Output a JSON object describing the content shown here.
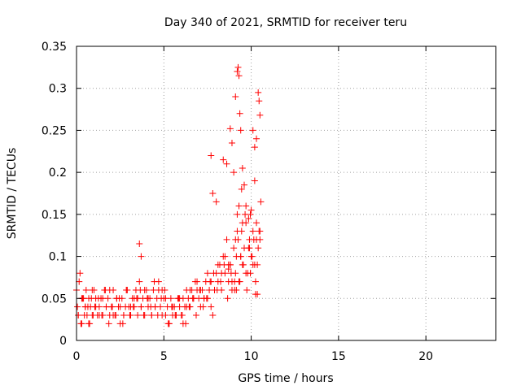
{
  "chart_data": {
    "type": "scatter",
    "title": "Day 340 of 2021, SRMTID for receiver teru",
    "xlabel": "GPS time / hours",
    "ylabel": "SRMTID / TECUs",
    "xlim": [
      0,
      24
    ],
    "ylim": [
      0,
      0.35
    ],
    "xticks": [
      0,
      5,
      10,
      15,
      20
    ],
    "xtick_labels": [
      "0",
      "5",
      "10",
      "15",
      "20"
    ],
    "yticks": [
      0,
      0.05,
      0.1,
      0.15,
      0.2,
      0.25,
      0.3,
      0.35
    ],
    "ytick_labels": [
      "0",
      "0.05",
      "0.1",
      "0.15",
      "0.2",
      "0.25",
      "0.3",
      "0.35"
    ],
    "grid": true,
    "marker": "+",
    "series": [
      {
        "name": "SRMTID",
        "color": "#ff0000",
        "x": [
          0.0,
          0.1,
          0.2,
          0.3,
          0.4,
          0.5,
          0.6,
          0.7,
          0.8,
          0.9,
          1.0,
          1.1,
          1.2,
          1.3,
          1.4,
          1.5,
          1.6,
          1.7,
          1.8,
          1.9,
          2.0,
          2.1,
          2.2,
          2.3,
          2.4,
          2.5,
          2.6,
          2.7,
          2.8,
          2.9,
          3.0,
          3.1,
          3.2,
          3.3,
          3.4,
          3.5,
          3.6,
          3.7,
          3.8,
          3.9,
          4.0,
          4.1,
          4.2,
          4.3,
          4.4,
          4.5,
          4.6,
          4.7,
          4.8,
          4.9,
          5.0,
          5.1,
          5.2,
          5.3,
          5.4,
          5.5,
          5.6,
          5.7,
          5.8,
          5.9,
          6.0,
          6.1,
          6.2,
          6.3,
          6.4,
          6.5,
          6.6,
          6.7,
          6.8,
          6.9,
          7.0,
          7.1,
          7.2,
          7.3,
          7.4,
          7.5,
          7.6,
          7.7,
          7.8,
          7.9,
          8.0,
          8.1,
          8.2,
          8.3,
          8.4,
          8.5,
          8.6,
          8.7,
          8.8,
          8.9,
          9.0,
          9.1,
          9.2,
          9.3,
          9.4,
          9.5,
          9.6,
          9.7,
          9.8,
          9.9,
          10.0,
          10.1,
          10.2,
          10.3,
          10.4,
          10.5,
          0.05,
          0.15,
          0.25,
          0.35,
          0.45,
          0.55,
          0.65,
          0.75,
          0.85,
          0.95,
          1.05,
          1.25,
          1.45,
          1.65,
          1.85,
          2.05,
          2.25,
          2.45,
          2.65,
          2.85,
          3.05,
          3.25,
          3.45,
          3.65,
          3.85,
          4.05,
          4.25,
          4.45,
          4.65,
          4.85,
          5.05,
          5.25,
          5.45,
          5.65,
          5.85,
          6.05,
          6.25,
          6.45,
          6.65,
          6.85,
          7.05,
          7.25,
          7.45,
          7.65,
          7.85,
          8.05,
          8.25,
          8.45,
          8.65,
          8.85,
          9.05,
          9.15,
          9.25,
          9.35,
          9.45,
          9.55,
          9.65,
          9.75,
          9.85,
          9.95,
          10.05,
          10.15,
          10.25,
          10.35,
          10.45,
          0.1,
          0.3,
          0.5,
          0.7,
          0.9,
          1.1,
          1.3,
          1.5,
          1.7,
          1.9,
          2.1,
          2.3,
          2.5,
          2.7,
          2.9,
          3.1,
          3.3,
          3.5,
          3.7,
          3.9,
          4.1,
          4.3,
          4.5,
          4.7,
          4.9,
          5.1,
          5.3,
          5.5,
          5.7,
          5.9,
          6.1,
          6.3,
          6.5,
          6.7,
          6.9,
          7.1,
          7.3,
          7.5,
          7.7,
          7.9,
          8.1,
          8.3,
          8.5,
          8.7,
          8.9,
          9.1,
          9.2,
          9.3,
          9.4,
          9.5,
          9.7,
          9.9,
          10.1,
          10.3,
          10.5,
          3.6,
          3.7,
          7.7,
          7.8,
          8.0,
          8.4,
          8.6,
          8.8,
          8.9,
          9.0,
          9.1,
          9.2,
          9.25,
          9.3,
          9.35,
          9.4,
          9.45,
          9.5,
          9.6,
          9.7,
          10.1,
          10.2,
          10.3,
          10.4,
          10.45,
          10.5,
          10.55,
          10.2,
          10.0,
          9.95,
          9.85,
          8.8,
          8.7,
          9.05,
          9.15,
          10.35,
          10.25
        ],
        "y": [
          0.06,
          0.03,
          0.08,
          0.02,
          0.05,
          0.04,
          0.03,
          0.05,
          0.04,
          0.03,
          0.06,
          0.05,
          0.03,
          0.04,
          0.05,
          0.03,
          0.06,
          0.04,
          0.05,
          0.03,
          0.04,
          0.06,
          0.03,
          0.05,
          0.04,
          0.02,
          0.05,
          0.03,
          0.04,
          0.06,
          0.04,
          0.03,
          0.05,
          0.04,
          0.06,
          0.05,
          0.07,
          0.04,
          0.05,
          0.03,
          0.06,
          0.04,
          0.05,
          0.03,
          0.06,
          0.04,
          0.05,
          0.07,
          0.04,
          0.06,
          0.05,
          0.03,
          0.04,
          0.02,
          0.05,
          0.03,
          0.04,
          0.03,
          0.05,
          0.04,
          0.03,
          0.05,
          0.04,
          0.06,
          0.05,
          0.04,
          0.06,
          0.05,
          0.07,
          0.06,
          0.05,
          0.04,
          0.06,
          0.05,
          0.07,
          0.05,
          0.06,
          0.04,
          0.03,
          0.06,
          0.08,
          0.07,
          0.09,
          0.06,
          0.1,
          0.08,
          0.12,
          0.07,
          0.09,
          0.06,
          0.11,
          0.08,
          0.13,
          0.07,
          0.1,
          0.09,
          0.11,
          0.14,
          0.08,
          0.12,
          0.1,
          0.13,
          0.09,
          0.14,
          0.11,
          0.12,
          0.04,
          0.07,
          0.02,
          0.05,
          0.03,
          0.06,
          0.04,
          0.02,
          0.05,
          0.03,
          0.04,
          0.05,
          0.03,
          0.06,
          0.02,
          0.04,
          0.03,
          0.05,
          0.02,
          0.06,
          0.03,
          0.04,
          0.05,
          0.06,
          0.03,
          0.05,
          0.04,
          0.07,
          0.03,
          0.05,
          0.06,
          0.02,
          0.04,
          0.03,
          0.05,
          0.03,
          0.02,
          0.04,
          0.05,
          0.03,
          0.06,
          0.04,
          0.05,
          0.07,
          0.08,
          0.06,
          0.07,
          0.09,
          0.05,
          0.08,
          0.06,
          0.1,
          0.12,
          0.07,
          0.13,
          0.09,
          0.15,
          0.06,
          0.11,
          0.08,
          0.1,
          0.12,
          0.07,
          0.09,
          0.13,
          0.03,
          0.05,
          0.04,
          0.02,
          0.06,
          0.04,
          0.03,
          0.05,
          0.04,
          0.06,
          0.03,
          0.05,
          0.04,
          0.03,
          0.06,
          0.04,
          0.05,
          0.03,
          0.04,
          0.06,
          0.05,
          0.03,
          0.04,
          0.06,
          0.03,
          0.05,
          0.02,
          0.04,
          0.03,
          0.05,
          0.02,
          0.04,
          0.06,
          0.05,
          0.07,
          0.06,
          0.05,
          0.08,
          0.07,
          0.06,
          0.09,
          0.08,
          0.1,
          0.09,
          0.07,
          0.12,
          0.15,
          0.16,
          0.1,
          0.14,
          0.08,
          0.11,
          0.09,
          0.12,
          0.13,
          0.115,
          0.1,
          0.22,
          0.175,
          0.165,
          0.215,
          0.21,
          0.252,
          0.235,
          0.2,
          0.29,
          0.32,
          0.325,
          0.315,
          0.27,
          0.25,
          0.18,
          0.205,
          0.185,
          0.16,
          0.25,
          0.23,
          0.24,
          0.295,
          0.285,
          0.268,
          0.165,
          0.19,
          0.155,
          0.15,
          0.145,
          0.09,
          0.085,
          0.07,
          0.06,
          0.055,
          0.055
        ]
      }
    ]
  }
}
